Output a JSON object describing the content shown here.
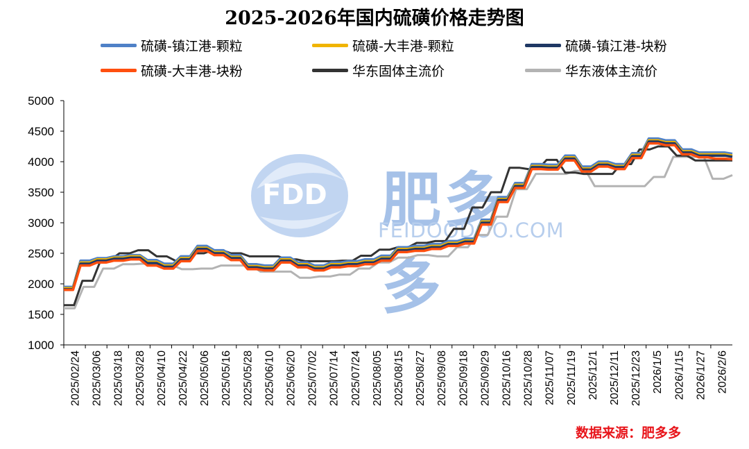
{
  "title": "2025-2026年国内硫磺价格走势图",
  "source": "数据来源：肥多多",
  "watermark": {
    "cn": "肥多多",
    "en": "FEIDOODOO.COM",
    "logo": "FDD"
  },
  "colors": {
    "zj_granule": "#4f81c7",
    "df_granule": "#f0b400",
    "zj_lump": "#1f3864",
    "df_lump": "#ff4f0f",
    "ec_solid": "#333333",
    "ec_liquid": "#b3b3b3"
  },
  "chart_data": {
    "type": "line",
    "title": "2025-2026年国内硫磺价格走势图",
    "ylim": [
      1000,
      5000
    ],
    "yticks": [
      1000,
      1500,
      2000,
      2500,
      3000,
      3500,
      4000,
      4500,
      5000
    ],
    "xticks": [
      "2025/02/24",
      "2025/03/06",
      "2025/03/18",
      "2025/03/28",
      "2025/04/10",
      "2025/04/22",
      "2025/05/06",
      "2025/05/16",
      "2025/05/28",
      "2025/06/10",
      "2025/06/20",
      "2025/07/02",
      "2025/07/14",
      "2025/07/24",
      "2025/08/05",
      "2025/08/15",
      "2025/08/27",
      "2025/09/08",
      "2025/09/18",
      "2025/09/29",
      "2025/10/16",
      "2025/10/28",
      "2025/11/07",
      "2025/11/19",
      "2025/12/1",
      "2025/12/11",
      "2025/12/23",
      "2026/1/5",
      "2026/1/15",
      "2026/1/27",
      "2026/2/6"
    ],
    "grid": false,
    "legend_position": "top",
    "series": [
      {
        "name": "硫磺-镇江港-颗粒",
        "color": "#4f81c7",
        "values": [
          1950,
          2380,
          2420,
          2450,
          2470,
          2390,
          2330,
          2450,
          2620,
          2550,
          2470,
          2320,
          2300,
          2430,
          2350,
          2300,
          2350,
          2370,
          2400,
          2460,
          2600,
          2620,
          2650,
          2700,
          2740,
          3050,
          3420,
          3650,
          3960,
          3950,
          4100,
          3920,
          4000,
          3960,
          4140,
          4380,
          4350,
          4200,
          4150,
          4150,
          4130
        ]
      },
      {
        "name": "硫磺-大丰港-颗粒",
        "color": "#f0b400",
        "values": [
          1930,
          2350,
          2400,
          2430,
          2450,
          2360,
          2300,
          2420,
          2590,
          2520,
          2440,
          2290,
          2270,
          2400,
          2320,
          2270,
          2320,
          2340,
          2370,
          2430,
          2570,
          2590,
          2620,
          2670,
          2710,
          3020,
          3390,
          3620,
          3930,
          3920,
          4070,
          3890,
          3970,
          3930,
          4110,
          4350,
          4320,
          4170,
          4120,
          4120,
          4100
        ]
      },
      {
        "name": "硫磺-镇江港-块粉",
        "color": "#1f3864",
        "values": [
          1910,
          2330,
          2380,
          2410,
          2430,
          2340,
          2280,
          2400,
          2570,
          2500,
          2420,
          2270,
          2250,
          2380,
          2300,
          2250,
          2300,
          2320,
          2350,
          2410,
          2550,
          2570,
          2600,
          2650,
          2690,
          3000,
          3370,
          3600,
          3910,
          3900,
          4050,
          3870,
          3950,
          3910,
          4090,
          4330,
          4300,
          4150,
          4100,
          4100,
          4080
        ]
      },
      {
        "name": "硫磺-大丰港-块粉",
        "color": "#ff4f0f",
        "values": [
          1900,
          2300,
          2350,
          2380,
          2400,
          2300,
          2250,
          2370,
          2540,
          2470,
          2390,
          2240,
          2220,
          2350,
          2270,
          2220,
          2270,
          2290,
          2320,
          2380,
          2520,
          2540,
          2570,
          2620,
          2660,
          2970,
          3340,
          3570,
          3880,
          3870,
          4020,
          3840,
          3920,
          3880,
          4060,
          4300,
          4270,
          4120,
          4070,
          4050,
          4040
        ]
      },
      {
        "name": "华东固体主流价",
        "color": "#333333",
        "values": [
          1650,
          2050,
          2400,
          2500,
          2550,
          2450,
          2380,
          2500,
          2550,
          2500,
          2450,
          2450,
          2400,
          2370,
          2370,
          2380,
          2460,
          2560,
          2600,
          2670,
          2700,
          2900,
          3250,
          3500,
          3900,
          3880,
          4030,
          3820,
          3800,
          3800,
          3960,
          4200,
          4250,
          4100,
          4020,
          4020,
          4020
        ]
      },
      {
        "name": "华东液体主流价",
        "color": "#b3b3b3",
        "values": [
          1600,
          1950,
          2250,
          2320,
          2330,
          2300,
          2240,
          2250,
          2300,
          2300,
          2200,
          2200,
          2100,
          2120,
          2150,
          2250,
          2350,
          2430,
          2470,
          2450,
          2600,
          2800,
          3100,
          3550,
          3800,
          3800,
          3850,
          3600,
          3600,
          3600,
          3750,
          4080,
          4080,
          3720,
          3780
        ]
      }
    ]
  }
}
